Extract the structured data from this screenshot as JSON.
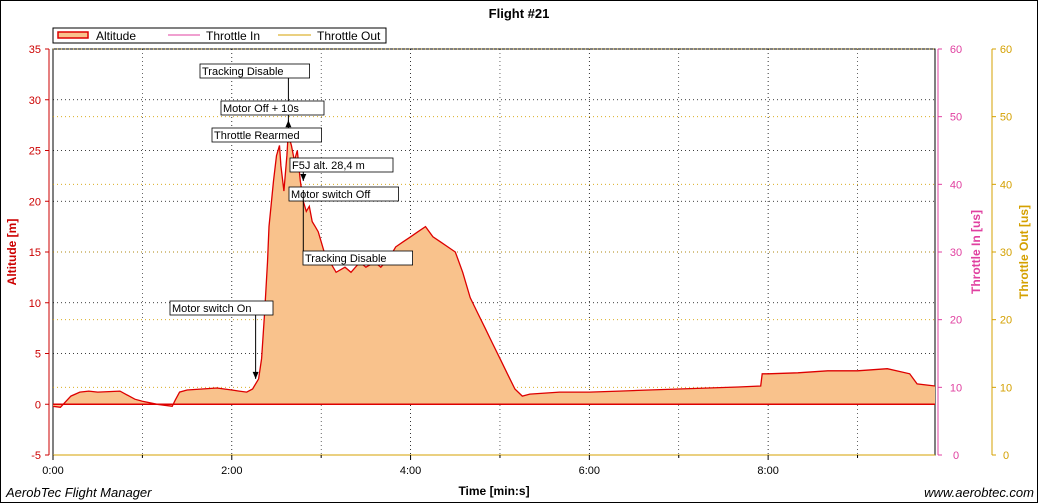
{
  "window": {
    "footer_left": "AerobTec Flight Manager",
    "footer_right": "www.aerobtec.com"
  },
  "colors": {
    "altitude_line": "#dd0000",
    "altitude_fill": "#f9c28c",
    "throttle_in": "#e040a0",
    "throttle_out": "#d4a000",
    "left_axis": "#cc0000",
    "grid": "#000000"
  },
  "chart_data": {
    "type": "area",
    "title": "Flight #21",
    "xlabel": "Time [min:s]",
    "ylabel_left": "Altitude [m]",
    "ylabel_right1": "Throttle In [us]",
    "ylabel_right2": "Throttle Out [us]",
    "xlim_seconds": [
      0,
      592
    ],
    "x_ticks": [
      "0:00",
      "2:00",
      "4:00",
      "6:00",
      "8:00"
    ],
    "ylim_left": [
      -5,
      35
    ],
    "y_ticks_left": [
      "35",
      "30",
      "25",
      "20",
      "15",
      "10",
      "5",
      "0",
      "-5"
    ],
    "ylim_right": [
      0,
      60
    ],
    "y_ticks_right1": [
      "60",
      "50",
      "40",
      "30",
      "20",
      "10",
      "0"
    ],
    "y_ticks_right2": [
      "60",
      "50",
      "40",
      "30",
      "20",
      "10",
      "0"
    ],
    "grid": "dotted",
    "legend_position": "top-left",
    "legend": [
      "Altitude",
      "Throttle In",
      "Throttle Out"
    ],
    "series": [
      {
        "name": "Altitude",
        "x": [
          0,
          5,
          12,
          18,
          24,
          30,
          45,
          55,
          60,
          70,
          80,
          82,
          85,
          90,
          100,
          110,
          120,
          125,
          130,
          134,
          138,
          140,
          142,
          144,
          145,
          146,
          148,
          150,
          152,
          153,
          155,
          157,
          158,
          159,
          160,
          162,
          164,
          166,
          168,
          170,
          172,
          174,
          176,
          178,
          180,
          182,
          186,
          190,
          196,
          200,
          206,
          210,
          216,
          220,
          226,
          230,
          235,
          240,
          245,
          250,
          255,
          260,
          265,
          270,
          275,
          280,
          285,
          290,
          295,
          300,
          305,
          310,
          315,
          320,
          330,
          340,
          360,
          380,
          400,
          420,
          440,
          460,
          475,
          476,
          480,
          500,
          520,
          540,
          560,
          575,
          580,
          592
        ],
        "values": [
          -0.2,
          -0.3,
          0.8,
          1.2,
          1.3,
          1.2,
          1.3,
          0.5,
          0.3,
          0.0,
          -0.2,
          0.4,
          1.2,
          1.4,
          1.5,
          1.6,
          1.4,
          1.3,
          1.2,
          1.5,
          2.5,
          4.5,
          9.0,
          14.0,
          17.5,
          19.0,
          22.0,
          24.5,
          25.5,
          23.5,
          21.0,
          24.5,
          27.0,
          26.0,
          25.5,
          24.0,
          25.0,
          22.0,
          20.0,
          19.0,
          19.5,
          18.0,
          17.5,
          17.0,
          16.0,
          15.0,
          14.0,
          13.0,
          13.5,
          13.0,
          14.0,
          13.5,
          14.0,
          13.5,
          14.5,
          15.5,
          16.0,
          16.5,
          17.0,
          17.5,
          16.5,
          16.0,
          15.5,
          15.0,
          13.0,
          10.5,
          9.0,
          7.5,
          6.0,
          4.5,
          3.0,
          1.5,
          0.8,
          1.0,
          1.1,
          1.2,
          1.2,
          1.3,
          1.4,
          1.5,
          1.6,
          1.7,
          1.8,
          3.0,
          3.0,
          3.1,
          3.3,
          3.3,
          3.5,
          3.0,
          2.0,
          1.8
        ]
      },
      {
        "name": "Throttle In",
        "x": [
          0,
          592
        ],
        "values": [
          0,
          0
        ]
      },
      {
        "name": "Throttle Out",
        "x": [
          0,
          592
        ],
        "values": [
          0,
          0
        ]
      }
    ],
    "annotations": [
      {
        "label": "Motor switch On",
        "t": 136,
        "alt": 2.5,
        "arrow": "down"
      },
      {
        "label": "Tracking Disable",
        "t": 158,
        "alt": 26.5,
        "arrow": "down"
      },
      {
        "label": "Motor Off + 10s",
        "t": 158,
        "alt": 29.0,
        "arrow": "down"
      },
      {
        "label": "Throttle Rearmed",
        "t": 158,
        "alt": 27.0,
        "arrow": "up"
      },
      {
        "label": "F5J alt. 28,4 m",
        "t": 168,
        "alt": 22.0,
        "arrow": "down"
      },
      {
        "label": "Motor switch Off",
        "t": 168,
        "alt": 22.0,
        "arrow": "none"
      },
      {
        "label": "Tracking Disable",
        "t": 168,
        "alt": 22.0,
        "arrow": "none"
      }
    ]
  }
}
